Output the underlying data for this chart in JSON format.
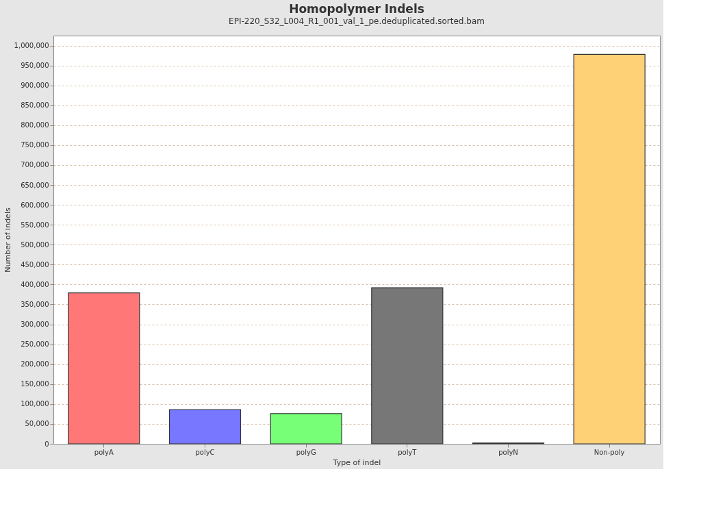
{
  "chart_data": {
    "type": "bar",
    "title": "Homopolymer Indels",
    "subtitle": "EPI-220_S32_L004_R1_001_val_1_pe.deduplicated.sorted.bam",
    "xlabel": "Type of indel",
    "ylabel": "Number of indels",
    "categories": [
      "polyA",
      "polyC",
      "polyG",
      "polyT",
      "polyN",
      "Non-poly"
    ],
    "values": [
      379000,
      86000,
      76000,
      392000,
      2000,
      978000
    ],
    "colors": [
      "#ff7777",
      "#7777ff",
      "#77ff77",
      "#777777",
      "#777777",
      "#ffd177"
    ],
    "ylim": [
      0,
      1025000
    ],
    "yticks": [
      0,
      {
        "value": 50000,
        "label": "50,000"
      },
      {
        "value": 100000,
        "label": "100,000"
      },
      {
        "value": 150000,
        "label": "150,000"
      },
      {
        "value": 200000,
        "label": "200,000"
      },
      {
        "value": 250000,
        "label": "250,000"
      },
      {
        "value": 300000,
        "label": "300,000"
      },
      {
        "value": 350000,
        "label": "350,000"
      },
      {
        "value": 400000,
        "label": "400,000"
      },
      {
        "value": 450000,
        "label": "450,000"
      },
      {
        "value": 500000,
        "label": "500,000"
      },
      {
        "value": 550000,
        "label": "550,000"
      },
      {
        "value": 600000,
        "label": "600,000"
      },
      {
        "value": 650000,
        "label": "650,000"
      },
      {
        "value": 700000,
        "label": "700,000"
      },
      {
        "value": 750000,
        "label": "750,000"
      },
      {
        "value": 800000,
        "label": "800,000"
      },
      {
        "value": 850000,
        "label": "850,000"
      },
      {
        "value": 900000,
        "label": "900,000"
      },
      {
        "value": 950000,
        "label": "950,000"
      },
      {
        "value": 1000000,
        "label": "1,000,000"
      }
    ],
    "grid": "y",
    "legend": false
  }
}
